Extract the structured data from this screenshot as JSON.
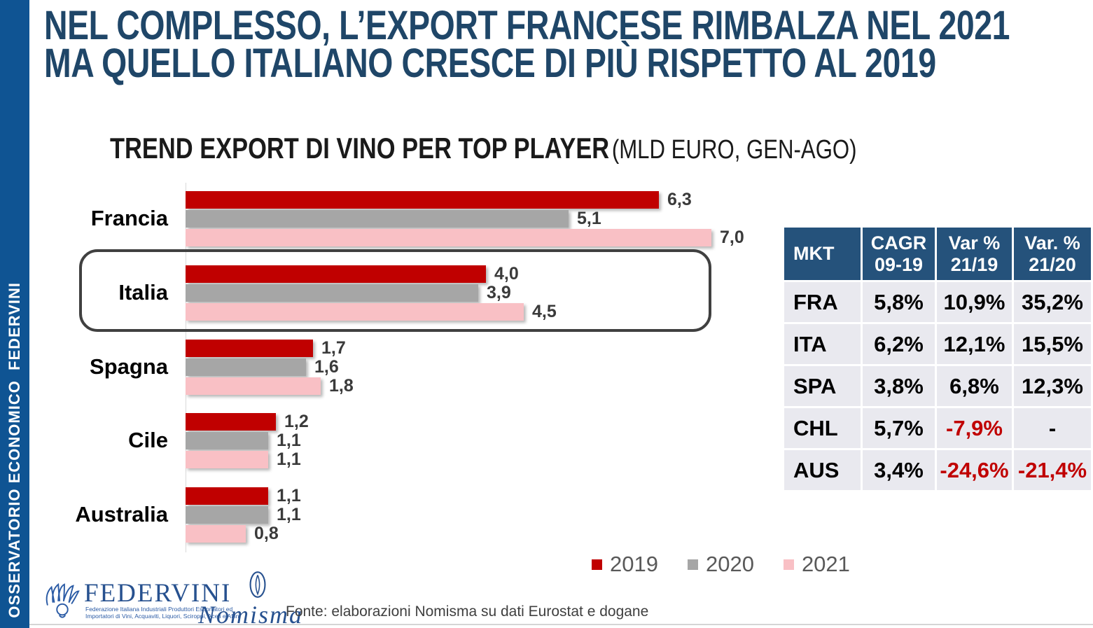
{
  "sidebar": {
    "text": "OSSERVATORIO ECONOMICO  FEDERVINI"
  },
  "title": {
    "line1": "NEL COMPLESSO, L’EXPORT FRANCESE RIMBALZA NEL 2021",
    "line2": "MA QUELLO ITALIANO CRESCE DI PIÙ RISPETTO AL 2019"
  },
  "chart": {
    "title": "TREND EXPORT DI VINO PER TOP PLAYER",
    "subtitle": " (MLD EURO, GEN-AGO)"
  },
  "chart_data": {
    "type": "bar",
    "orientation": "horizontal",
    "title": "TREND EXPORT DI VINO PER TOP PLAYER (MLD EURO, GEN-AGO)",
    "unit": "MLD EURO",
    "categories": [
      "Francia",
      "Italia",
      "Spagna",
      "Cile",
      "Australia"
    ],
    "series": [
      {
        "name": "2019",
        "color": "#C00000",
        "values": [
          6.3,
          4.0,
          1.7,
          1.2,
          1.1
        ]
      },
      {
        "name": "2020",
        "color": "#A6A6A6",
        "values": [
          5.1,
          3.9,
          1.6,
          1.1,
          1.1
        ]
      },
      {
        "name": "2021",
        "color": "#F9C0C5",
        "values": [
          7.0,
          4.5,
          1.8,
          1.1,
          0.8
        ]
      }
    ],
    "value_labels": [
      [
        "6,3",
        "5,1",
        "7,0"
      ],
      [
        "4,0",
        "3,9",
        "4,5"
      ],
      [
        "1,7",
        "1,6",
        "1,8"
      ],
      [
        "1,2",
        "1,1",
        "1,1"
      ],
      [
        "1,1",
        "1,1",
        "0,8"
      ]
    ],
    "xlim": [
      0,
      7.0
    ],
    "grid": false,
    "highlight_category": "Italia",
    "legend_position": "bottom",
    "legend_entries": [
      "2019",
      "2020",
      "2021"
    ]
  },
  "table": {
    "headers": [
      "MKT",
      "CAGR\n09-19",
      "Var %\n21/19",
      "Var. %\n21/20"
    ],
    "rows": [
      [
        "FRA",
        "5,8%",
        "10,9%",
        "35,2%"
      ],
      [
        "ITA",
        "6,2%",
        "12,1%",
        "15,5%"
      ],
      [
        "SPA",
        "3,8%",
        "6,8%",
        "12,3%"
      ],
      [
        "CHL",
        "5,7%",
        "-7,9%",
        "-"
      ],
      [
        "AUS",
        "3,4%",
        "-24,6%",
        "-21,4%"
      ]
    ],
    "negative_color": "#C00000"
  },
  "footer": {
    "federvini_name": "FEDERVINI",
    "federvini_sub1": "Federazione Italiana Industriali Produttori Esportatori ed",
    "federvini_sub2": "Importatori di Vini, Acquaviti, Liquori, Sciroppi, Aceti e Affini",
    "nomisma_name": "Nomisma",
    "source": "Fonte: elaborazioni Nomisma su dati Eurostat e dogane"
  },
  "colors": {
    "sidebar_blue": "#0F5493",
    "title_navy": "#1F4668",
    "table_header_blue": "#25527B",
    "table_row_gray": "#E9E9EF",
    "bar_2019": "#C00000",
    "bar_2020": "#A6A6A6",
    "bar_2021": "#F9C0C5",
    "negative_red": "#C00000"
  }
}
